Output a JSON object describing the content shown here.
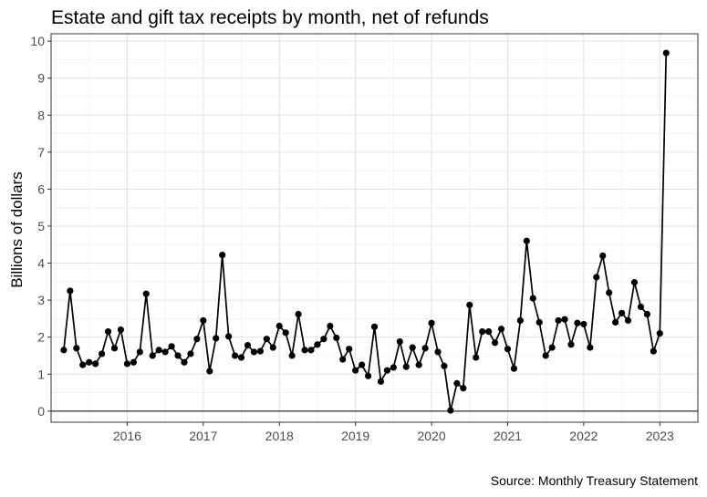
{
  "chart_data": {
    "type": "line",
    "title": "Estate and gift tax receipts by month, net of refunds",
    "ylabel": "Billions of dollars",
    "xlabel": "",
    "source": "Source: Monthly Treasury Statement",
    "xlim": [
      2015.0,
      2023.5
    ],
    "ylim": [
      -0.3,
      10.2
    ],
    "x_ticks": [
      2016,
      2017,
      2018,
      2019,
      2020,
      2021,
      2022,
      2023
    ],
    "y_ticks": [
      0,
      1,
      2,
      3,
      4,
      5,
      6,
      7,
      8,
      9,
      10
    ],
    "start": {
      "year": 2015,
      "month": 3
    },
    "series": [
      {
        "name": "Estate and gift tax receipts",
        "values": [
          1.65,
          3.25,
          1.7,
          1.25,
          1.32,
          1.28,
          1.55,
          2.15,
          1.7,
          2.2,
          1.28,
          1.32,
          1.6,
          3.17,
          1.5,
          1.65,
          1.6,
          1.75,
          1.5,
          1.32,
          1.55,
          1.95,
          2.45,
          1.08,
          1.97,
          4.22,
          2.02,
          1.5,
          1.45,
          1.78,
          1.6,
          1.62,
          1.95,
          1.72,
          2.3,
          2.12,
          1.5,
          2.62,
          1.65,
          1.65,
          1.8,
          1.95,
          2.3,
          1.98,
          1.4,
          1.68,
          1.1,
          1.25,
          0.95,
          2.28,
          0.8,
          1.1,
          1.18,
          1.88,
          1.2,
          1.72,
          1.25,
          1.7,
          2.38,
          1.6,
          1.22,
          0.02,
          0.75,
          0.62,
          2.87,
          1.45,
          2.15,
          2.15,
          1.85,
          2.22,
          1.68,
          1.15,
          2.45,
          4.6,
          3.05,
          2.4,
          1.5,
          1.72,
          2.45,
          2.48,
          1.8,
          2.38,
          2.35,
          1.72,
          3.62,
          4.2,
          3.2,
          2.4,
          2.65,
          2.45,
          3.48,
          2.82,
          2.62,
          1.62,
          2.1,
          9.68
        ]
      }
    ]
  }
}
